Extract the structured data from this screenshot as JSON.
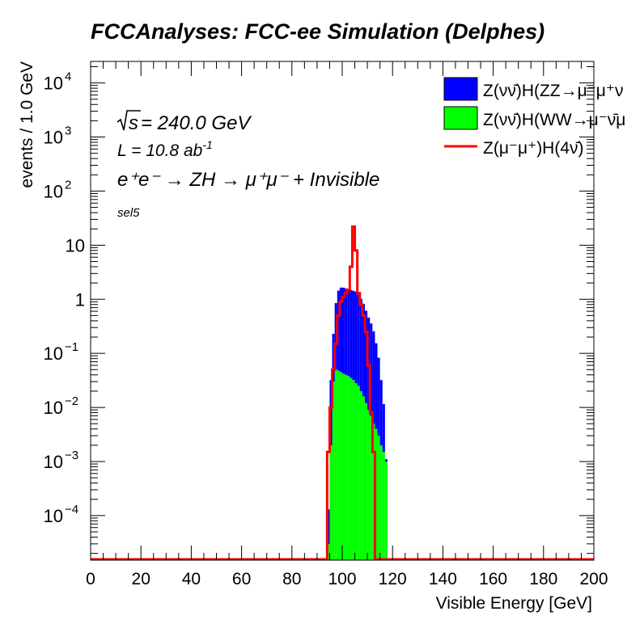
{
  "chart_data": {
    "type": "histogram",
    "title": "FCCAnalyses: FCC-ee Simulation (Delphes)",
    "xlabel": "Visible Energy [GeV]",
    "ylabel": "events / 1.0 GeV",
    "xlim": [
      0,
      200
    ],
    "ylim": [
      1.5e-05,
      25000
    ],
    "y_scale": "log",
    "x_ticks": [
      "0",
      "20",
      "40",
      "60",
      "80",
      "100",
      "120",
      "140",
      "160",
      "180",
      "200"
    ],
    "y_ticks": [
      {
        "value": 0.0001,
        "mant": "10",
        "exp": "−4"
      },
      {
        "value": 0.001,
        "mant": "10",
        "exp": "−3"
      },
      {
        "value": 0.01,
        "mant": "10",
        "exp": "−2"
      },
      {
        "value": 0.1,
        "mant": "10",
        "exp": "−1"
      },
      {
        "value": 1,
        "mant": "1",
        "exp": ""
      },
      {
        "value": 10,
        "mant": "10",
        "exp": ""
      },
      {
        "value": 100,
        "mant": "10",
        "exp": "2"
      },
      {
        "value": 1000,
        "mant": "10",
        "exp": "3"
      },
      {
        "value": 10000,
        "mant": "10",
        "exp": "4"
      }
    ],
    "annotations": {
      "sqrt_s": "s",
      "energy": " = 240.0 GeV",
      "lumi_prefix": "L = 10.8 ab",
      "lumi_exp": "-1",
      "process": "e⁺e⁻ → ZH → μ⁺μ⁻ + Invisible",
      "selection": "sel5"
    },
    "legend_position": "top-right",
    "stack": {
      "bin_start": 94,
      "bin_width": 1,
      "series": [
        {
          "name": "Z(νν̄)H(WW→μ⁻ν̄μ",
          "color": "#00ff00",
          "values": [
            3e-05,
            0.002,
            0.03,
            0.05,
            0.048,
            0.045,
            0.042,
            0.04,
            0.038,
            0.035,
            0.032,
            0.028,
            0.025,
            0.02,
            0.016,
            0.012,
            0.009,
            0.007,
            0.005,
            0.004,
            0.003,
            0.002,
            0.0015,
            0.001
          ]
        },
        {
          "name": "Z(νν̄)H(ZZ→μ⁻μ⁺ν",
          "color": "#0000ff",
          "values": [
            0.0001,
            0.03,
            0.2,
            0.8,
            1.4,
            1.6,
            1.6,
            1.55,
            1.5,
            1.45,
            1.4,
            1.35,
            1.2,
            1.0,
            0.8,
            0.6,
            0.45,
            0.35,
            0.25,
            0.15,
            0.08,
            0.03,
            0.01,
            0.0001
          ]
        }
      ]
    },
    "line": {
      "name": "Z(μ⁻μ⁺)H(4ν̄)",
      "color": "#ff0000",
      "bin_start": 93,
      "bin_width": 1,
      "values": [
        1.5e-05,
        0.0015,
        0.01,
        0.05,
        0.15,
        0.5,
        0.9,
        1.1,
        1.3,
        1.5,
        4,
        22,
        8,
        1.3,
        0.8,
        0.5,
        0.25,
        0.06,
        0.008,
        0.0015,
        1.5e-05
      ]
    }
  }
}
